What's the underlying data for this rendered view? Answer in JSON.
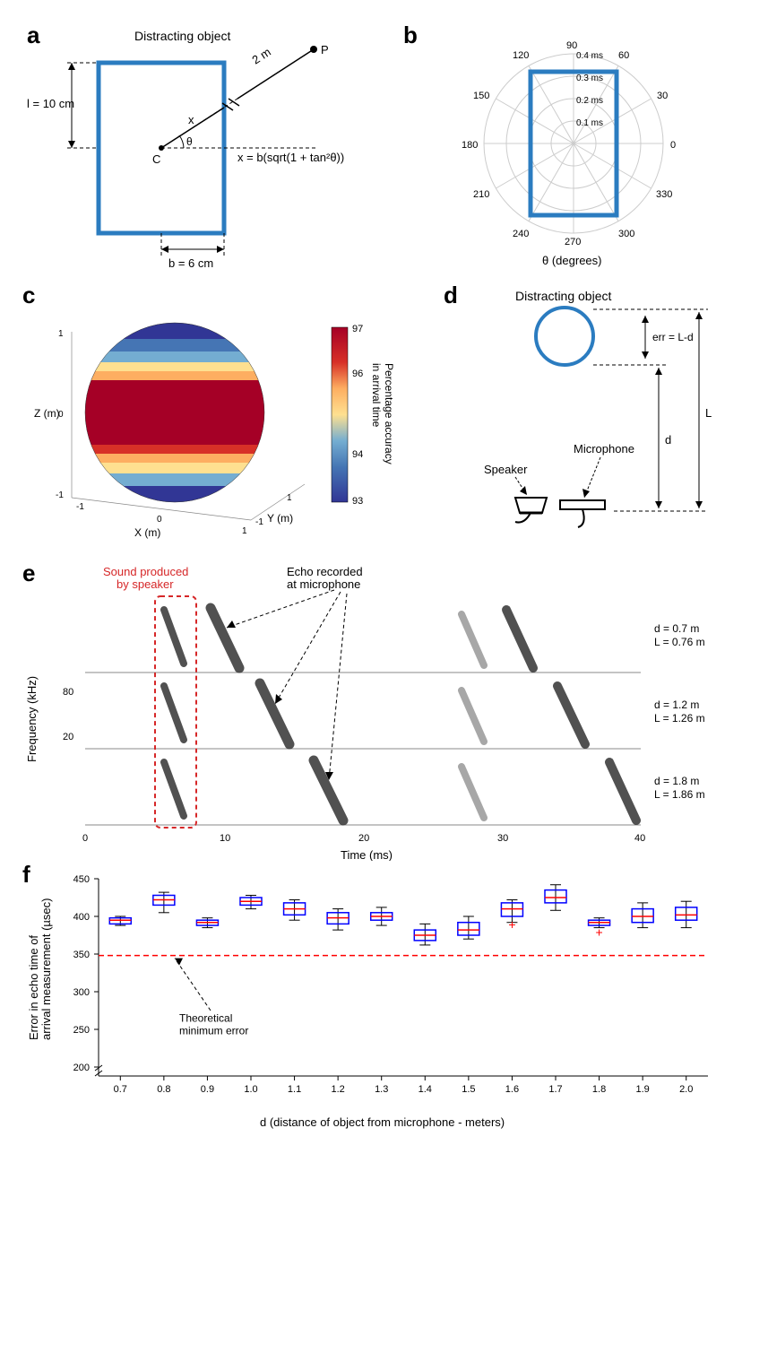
{
  "panel_a": {
    "label": "a",
    "title": "Distracting object",
    "length_label": "l = 10 cm",
    "half_width_label": "b = 6 cm",
    "dist_label": "2 m",
    "point_label": "P",
    "center_label": "C",
    "angle_label": "θ",
    "x_label": "x",
    "equation": "x = b(sqrt(1 + tan²θ))",
    "box_color": "#2b7cc0",
    "box_stroke_width": 4
  },
  "panel_b": {
    "label": "b",
    "radial_labels": [
      "0.1 ms",
      "0.2 ms",
      "0.3 ms",
      "0.4 ms"
    ],
    "angle_labels": [
      "0",
      "30",
      "60",
      "90",
      "120",
      "150",
      "180",
      "210",
      "240",
      "270",
      "300",
      "330"
    ],
    "axis_label": "θ (degrees)",
    "box_color": "#2b7cc0",
    "grid_color": "#cccccc"
  },
  "panel_c": {
    "label": "c",
    "x_axis_label": "X (m)",
    "y_axis_label": "Y (m)",
    "z_axis_label": "Z (m)",
    "x_ticks": [
      "-1",
      "0",
      "1"
    ],
    "y_ticks": [
      "-1",
      "0",
      "1"
    ],
    "z_ticks": [
      "-1",
      "0",
      "1"
    ],
    "colorbar_label": "Percentage accuracy\nin arrival time",
    "colorbar_ticks": [
      "93",
      "94",
      "96",
      "97"
    ],
    "colors": {
      "deep_red": "#a50026",
      "red": "#d73027",
      "orange": "#fdae61",
      "yellow": "#fee090",
      "green": "#a6d96a",
      "cyan": "#74add1",
      "blue": "#313695"
    }
  },
  "panel_d": {
    "label": "d",
    "title": "Distracting object",
    "err_label": "err = L-d",
    "d_label": "d",
    "L_label": "L",
    "speaker_label": "Speaker",
    "mic_label": "Microphone",
    "circle_color": "#2b7cc0"
  },
  "panel_e": {
    "label": "e",
    "speaker_label": "Sound produced\nby speaker",
    "echo_label": "Echo recorded\nat microphone",
    "y_axis_label": "Frequency (kHz)",
    "x_axis_label": "Time (ms)",
    "y_ticks": [
      "20",
      "80"
    ],
    "x_ticks": [
      "0",
      "10",
      "20",
      "30",
      "40"
    ],
    "rows": [
      {
        "d": "d = 0.7 m",
        "L": "L = 0.76 m"
      },
      {
        "d": "d = 1.2 m",
        "L": "L = 1.26 m"
      },
      {
        "d": "d = 1.8 m",
        "L": "L = 1.86 m"
      }
    ],
    "speaker_color": "#d62728",
    "echo_color": "#000000"
  },
  "panel_f": {
    "label": "f",
    "y_axis_label": "Error in echo time of\narrival measurement (µsec)",
    "x_axis_label": "d (distance of object from microphone - meters)",
    "y_ticks": [
      "200",
      "250",
      "300",
      "350",
      "400",
      "450"
    ],
    "x_ticks": [
      "0.7",
      "0.8",
      "0.9",
      "1.0",
      "1.1",
      "1.2",
      "1.3",
      "1.4",
      "1.5",
      "1.6",
      "1.7",
      "1.8",
      "1.9",
      "2.0"
    ],
    "ref_line_y": 348,
    "ref_label": "Theoretical\nminimum error",
    "box_color": "#0000ff",
    "median_color": "#ff0000",
    "ref_color": "#ff0000",
    "data": [
      {
        "x": 0.7,
        "q1": 390,
        "median": 395,
        "q3": 398,
        "low": 388,
        "high": 400
      },
      {
        "x": 0.8,
        "q1": 415,
        "median": 422,
        "q3": 428,
        "low": 405,
        "high": 432
      },
      {
        "x": 0.9,
        "q1": 388,
        "median": 392,
        "q3": 395,
        "low": 385,
        "high": 398
      },
      {
        "x": 1.0,
        "q1": 415,
        "median": 420,
        "q3": 425,
        "low": 410,
        "high": 428
      },
      {
        "x": 1.1,
        "q1": 402,
        "median": 410,
        "q3": 418,
        "low": 395,
        "high": 422
      },
      {
        "x": 1.2,
        "q1": 390,
        "median": 398,
        "q3": 405,
        "low": 382,
        "high": 410
      },
      {
        "x": 1.3,
        "q1": 395,
        "median": 400,
        "q3": 405,
        "low": 388,
        "high": 412
      },
      {
        "x": 1.4,
        "q1": 368,
        "median": 375,
        "q3": 382,
        "low": 362,
        "high": 390
      },
      {
        "x": 1.5,
        "q1": 375,
        "median": 382,
        "q3": 392,
        "low": 370,
        "high": 400
      },
      {
        "x": 1.6,
        "q1": 400,
        "median": 410,
        "q3": 418,
        "low": 392,
        "high": 422,
        "outliers": [
          388
        ]
      },
      {
        "x": 1.7,
        "q1": 418,
        "median": 425,
        "q3": 435,
        "low": 408,
        "high": 442
      },
      {
        "x": 1.8,
        "q1": 388,
        "median": 392,
        "q3": 395,
        "low": 385,
        "high": 398,
        "outliers": [
          378
        ]
      },
      {
        "x": 1.9,
        "q1": 392,
        "median": 400,
        "q3": 410,
        "low": 385,
        "high": 418
      },
      {
        "x": 2.0,
        "q1": 395,
        "median": 402,
        "q3": 412,
        "low": 385,
        "high": 420
      }
    ]
  }
}
